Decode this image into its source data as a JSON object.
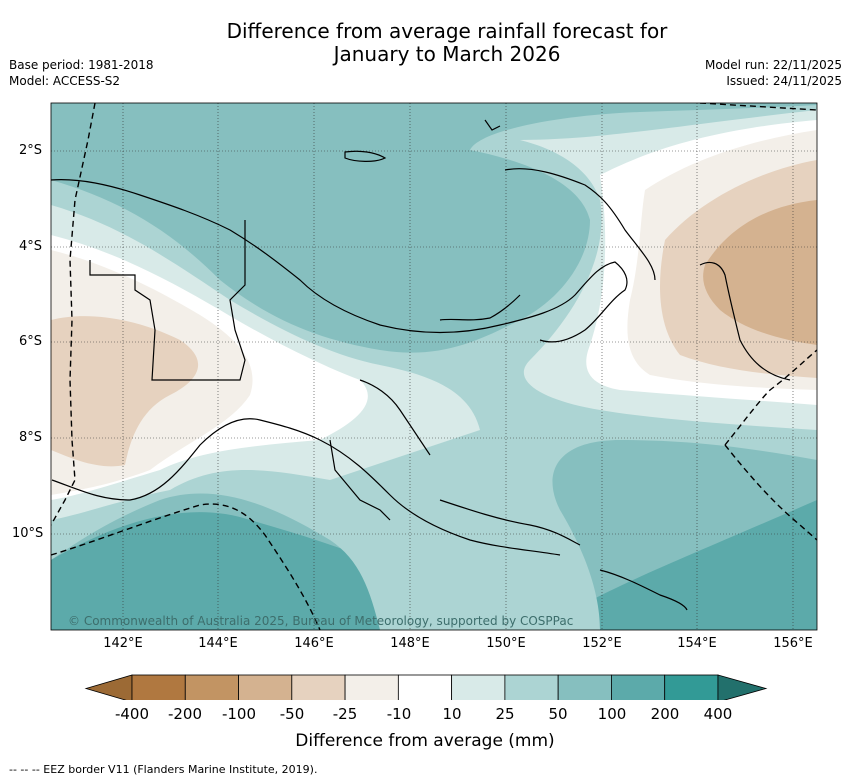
{
  "title_line1": "Difference from average rainfall forecast for",
  "title_line2": "January to March 2026",
  "meta_left": {
    "base_period": "Base period: 1981-2018",
    "model": "Model: ACCESS-S2"
  },
  "meta_right": {
    "model_run": "Model run: 22/11/2025",
    "issued": "Issued: 24/11/2025"
  },
  "latitude_labels": [
    "2°S",
    "4°S",
    "6°S",
    "8°S",
    "10°S"
  ],
  "longitude_labels": [
    "142°E",
    "144°E",
    "146°E",
    "148°E",
    "150°E",
    "152°E",
    "154°E",
    "156°E"
  ],
  "copyright": "© Commonwealth of Australia 2025, Bureau of Meteorology, supported by COSPPac",
  "colorbar": {
    "title": "Difference from average (mm)",
    "ticks": [
      "-400",
      "-200",
      "-100",
      "-50",
      "-25",
      "-10",
      "10",
      "25",
      "50",
      "100",
      "200",
      "400"
    ],
    "colors": [
      "#9c6a35",
      "#b07840",
      "#c29463",
      "#d4b290",
      "#e6d2bf",
      "#f3efe9",
      "#ffffff",
      "#d8eae8",
      "#acd4d3",
      "#86bfbf",
      "#5caaaa",
      "#329a96",
      "#22706c"
    ]
  },
  "footnote": "--  --  -- EEZ border V11 (Flanders Marine Institute, 2019)."
}
